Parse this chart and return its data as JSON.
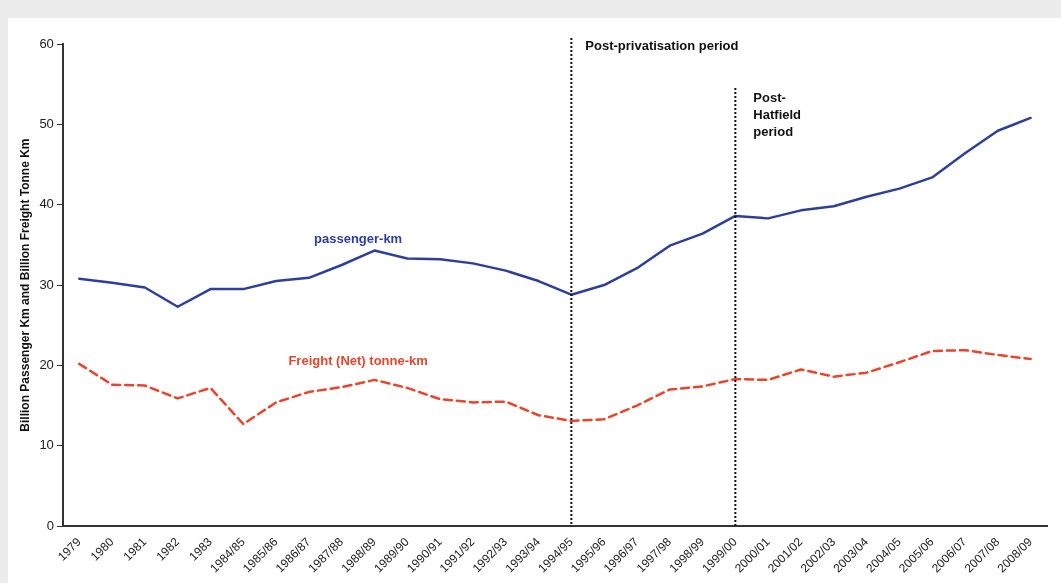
{
  "chart_data": {
    "type": "line",
    "ylabel": "Billion Passenger Km and Billion Freight Tonne Km",
    "categories": [
      "1979",
      "1980",
      "1981",
      "1982",
      "1983",
      "1984/85",
      "1985/86",
      "1986/87",
      "1987/88",
      "1988/89",
      "1989/90",
      "1990/91",
      "1991/92",
      "1992/93",
      "1993/94",
      "1994/95",
      "1995/96",
      "1996/97",
      "1997/98",
      "1998/99",
      "1999/00",
      "2000/01",
      "2001/02",
      "2002/03",
      "2003/04",
      "2004/05",
      "2005/06",
      "2006/07",
      "2007/08",
      "2008/09"
    ],
    "series": [
      {
        "name": "passenger-km",
        "color": "#2e3f9a",
        "line_style": "solid",
        "values": [
          30.8,
          30.3,
          29.7,
          27.3,
          29.5,
          29.5,
          30.5,
          30.9,
          32.5,
          34.3,
          33.3,
          33.2,
          32.7,
          31.8,
          30.5,
          28.8,
          30.0,
          32.1,
          34.9,
          36.4,
          38.6,
          38.3,
          39.3,
          39.8,
          41.0,
          42.0,
          43.4,
          46.4,
          49.2,
          50.8
        ]
      },
      {
        "name": "Freight (Net) tonne-km",
        "color": "#e8452c",
        "line_style": "dashed",
        "values": [
          20.2,
          17.6,
          17.5,
          15.9,
          17.2,
          12.7,
          15.4,
          16.7,
          17.3,
          18.2,
          17.2,
          15.8,
          15.4,
          15.5,
          13.8,
          13.1,
          13.3,
          15.0,
          17.0,
          17.4,
          18.3,
          18.2,
          19.5,
          18.6,
          19.1,
          20.4,
          21.8,
          21.9,
          21.3,
          20.8
        ]
      }
    ],
    "ylim": [
      0,
      60
    ],
    "yticks": [
      0,
      10,
      20,
      30,
      40,
      50,
      60
    ],
    "grid": false,
    "legend": false,
    "marker": "none",
    "ref_lines": [
      {
        "axis": "x",
        "value": "1994/95",
        "label": "Post-privatisation period",
        "color": "#111111",
        "line_style": "dotted"
      },
      {
        "axis": "x",
        "value": "1999/00",
        "label": "Post-Hatfield period",
        "color": "#111111",
        "line_style": "dotted"
      }
    ]
  }
}
